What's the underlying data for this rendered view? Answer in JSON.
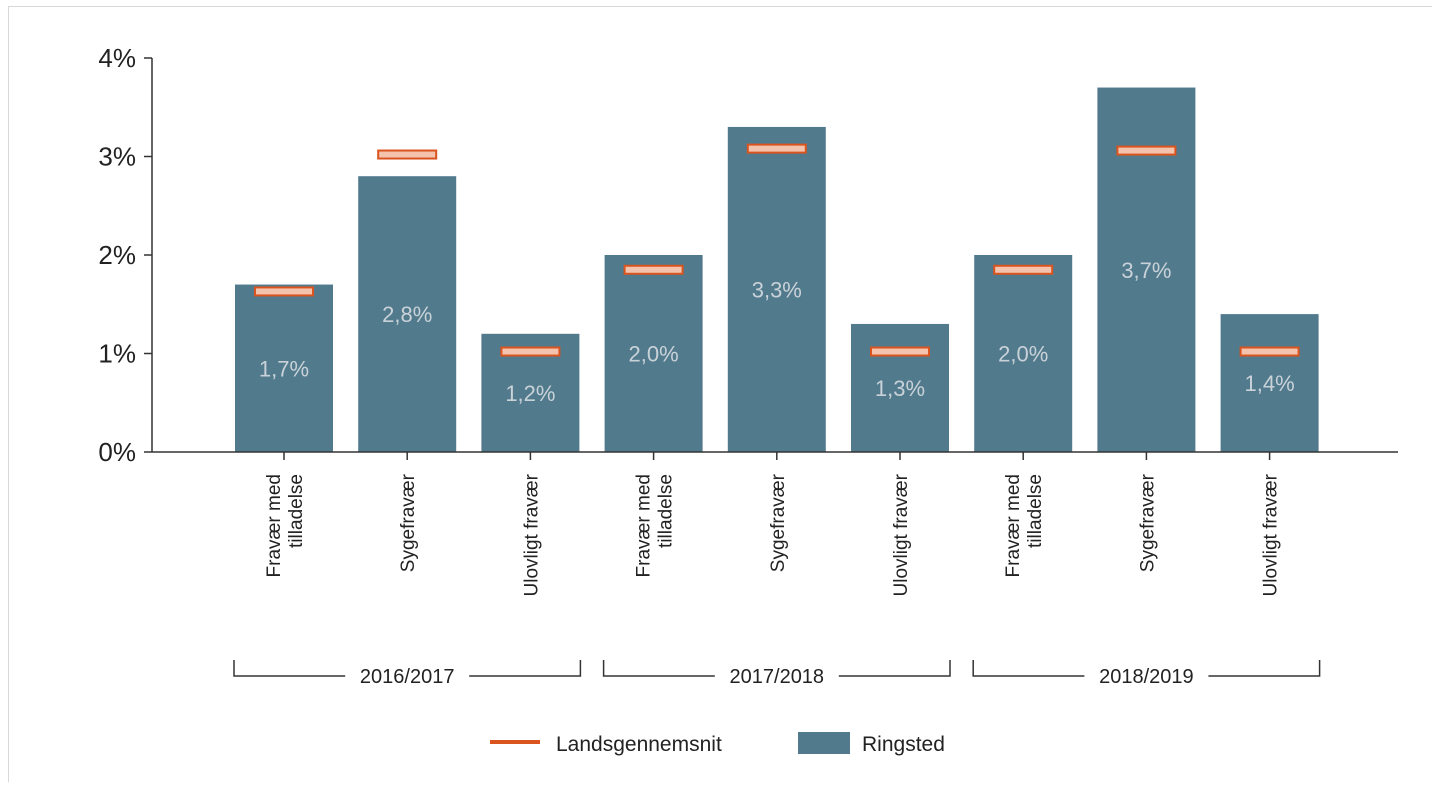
{
  "chart_data": {
    "type": "bar",
    "ylim": [
      0,
      4
    ],
    "y_ticks": [
      "0%",
      "1%",
      "2%",
      "3%",
      "4%"
    ],
    "groups": [
      "2016/2017",
      "2017/2018",
      "2018/2019"
    ],
    "categories": [
      [
        "Fravær med",
        "tilladelse"
      ],
      [
        "Sygefravær"
      ],
      [
        "Ulovligt fravær"
      ],
      [
        "Fravær med",
        "tilladelse"
      ],
      [
        "Sygefravær"
      ],
      [
        "Ulovligt fravær"
      ],
      [
        "Fravær med",
        "tilladelse"
      ],
      [
        "Sygefravær"
      ],
      [
        "Ulovligt fravær"
      ]
    ],
    "series": [
      {
        "name": "Ringsted",
        "kind": "bar",
        "color": "#527a8d",
        "values": [
          1.7,
          2.8,
          1.2,
          2.0,
          3.3,
          1.3,
          2.0,
          3.7,
          1.4
        ],
        "labels": [
          "1,7%",
          "2,8%",
          "1,2%",
          "2,0%",
          "3,3%",
          "1,3%",
          "2,0%",
          "3,7%",
          "1,4%"
        ]
      },
      {
        "name": "Landsgennemsnit",
        "kind": "marker",
        "color": "#d9541e",
        "values": [
          1.63,
          3.02,
          1.02,
          1.85,
          3.08,
          1.02,
          1.85,
          3.06,
          1.02
        ]
      }
    ],
    "legend": "bottom",
    "grid": false
  }
}
